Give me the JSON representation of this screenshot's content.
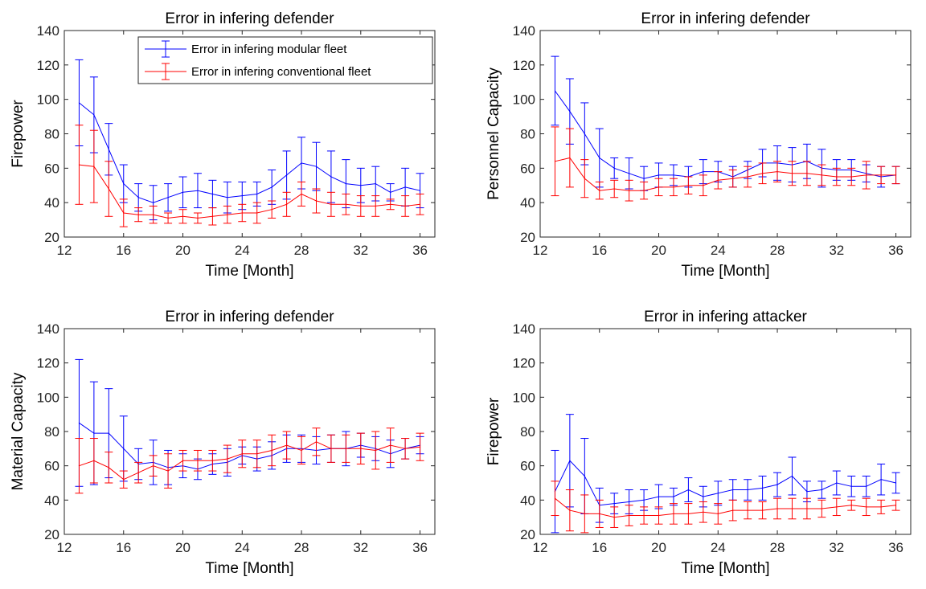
{
  "chart_data": [
    {
      "type": "line",
      "title": "Error in infering defender",
      "xlabel": "Time [Month]",
      "ylabel": "Firepower",
      "xlim": [
        12,
        37
      ],
      "ylim": [
        20,
        140
      ],
      "xticks": [
        12,
        16,
        20,
        24,
        28,
        32,
        36
      ],
      "yticks": [
        20,
        40,
        60,
        80,
        100,
        120,
        140
      ],
      "legend": "top-right",
      "x": [
        13,
        14,
        15,
        16,
        17,
        18,
        19,
        20,
        21,
        22,
        23,
        24,
        25,
        26,
        27,
        28,
        29,
        30,
        31,
        32,
        33,
        34,
        35,
        36
      ],
      "series": [
        {
          "name": "Error in infering modular fleet",
          "color": "#0000ff",
          "values": [
            98,
            91,
            71,
            51,
            43,
            40,
            43,
            46,
            47,
            45,
            43,
            44,
            45,
            49,
            56,
            63,
            61,
            55,
            51,
            50,
            51,
            46,
            49,
            47
          ],
          "err": [
            25,
            22,
            15,
            11,
            8,
            10,
            8,
            9,
            10,
            8,
            9,
            8,
            7,
            10,
            14,
            15,
            14,
            15,
            14,
            10,
            10,
            5,
            11,
            10
          ]
        },
        {
          "name": "Error in infering conventional fleet",
          "color": "#ff0000",
          "values": [
            62,
            61,
            48,
            34,
            33,
            33,
            31,
            32,
            31,
            32,
            33,
            34,
            34,
            36,
            39,
            45,
            41,
            39,
            39,
            38,
            38,
            39,
            38,
            39
          ],
          "err": [
            23,
            21,
            16,
            8,
            4,
            5,
            3,
            4,
            3,
            5,
            5,
            5,
            6,
            5,
            7,
            7,
            7,
            7,
            6,
            6,
            6,
            3,
            6,
            6
          ]
        }
      ]
    },
    {
      "type": "line",
      "title": "Error in infering defender",
      "xlabel": "Time [Month]",
      "ylabel": "Personnel Capacity",
      "xlim": [
        12,
        37
      ],
      "ylim": [
        20,
        140
      ],
      "xticks": [
        12,
        16,
        20,
        24,
        28,
        32,
        36
      ],
      "yticks": [
        20,
        40,
        60,
        80,
        100,
        120,
        140
      ],
      "x": [
        13,
        14,
        15,
        16,
        17,
        18,
        19,
        20,
        21,
        22,
        23,
        24,
        25,
        26,
        27,
        28,
        29,
        30,
        31,
        32,
        33,
        34,
        35,
        36
      ],
      "series": [
        {
          "color": "#0000ff",
          "values": [
            105,
            93,
            80,
            66,
            60,
            57,
            54,
            56,
            56,
            55,
            58,
            58,
            55,
            59,
            63,
            63,
            62,
            64,
            60,
            59,
            59,
            57,
            55,
            56
          ],
          "err": [
            20,
            19,
            18,
            17,
            6,
            9,
            7,
            7,
            6,
            6,
            7,
            6,
            6,
            5,
            8,
            10,
            10,
            10,
            11,
            6,
            6,
            5,
            6,
            5
          ]
        },
        {
          "color": "#ff0000",
          "values": [
            64,
            66,
            54,
            47,
            48,
            47,
            47,
            49,
            49,
            50,
            50,
            53,
            54,
            55,
            57,
            58,
            57,
            57,
            56,
            55,
            55,
            56,
            56,
            56
          ],
          "err": [
            20,
            17,
            11,
            5,
            5,
            6,
            5,
            5,
            5,
            5,
            6,
            5,
            5,
            6,
            6,
            6,
            7,
            7,
            6,
            5,
            5,
            8,
            5,
            5
          ]
        }
      ]
    },
    {
      "type": "line",
      "title": "Error in infering defender",
      "xlabel": "Time [Month]",
      "ylabel": "Material Capacity",
      "xlim": [
        12,
        37
      ],
      "ylim": [
        20,
        140
      ],
      "xticks": [
        12,
        16,
        20,
        24,
        28,
        32,
        36
      ],
      "yticks": [
        20,
        40,
        60,
        80,
        100,
        120,
        140
      ],
      "x": [
        13,
        14,
        15,
        16,
        17,
        18,
        19,
        20,
        21,
        22,
        23,
        24,
        25,
        26,
        27,
        28,
        29,
        30,
        31,
        32,
        33,
        34,
        35,
        36
      ],
      "series": [
        {
          "color": "#0000ff",
          "values": [
            85,
            79,
            79,
            70,
            61,
            62,
            59,
            60,
            58,
            61,
            62,
            66,
            64,
            66,
            70,
            70,
            69,
            70,
            70,
            72,
            70,
            67,
            70,
            72
          ],
          "err": [
            37,
            30,
            26,
            19,
            9,
            13,
            10,
            7,
            6,
            6,
            8,
            5,
            7,
            8,
            8,
            8,
            8,
            8,
            10,
            7,
            7,
            8,
            6,
            5
          ]
        },
        {
          "color": "#ff0000",
          "values": [
            60,
            63,
            59,
            52,
            56,
            60,
            57,
            63,
            63,
            63,
            64,
            67,
            67,
            69,
            72,
            69,
            74,
            70,
            70,
            70,
            69,
            72,
            70,
            71
          ],
          "err": [
            16,
            13,
            9,
            5,
            6,
            6,
            10,
            6,
            6,
            6,
            8,
            8,
            8,
            9,
            8,
            8,
            8,
            8,
            8,
            9,
            11,
            10,
            6,
            8
          ]
        }
      ]
    },
    {
      "type": "line",
      "title": "Error in infering attacker",
      "xlabel": "Time [Month]",
      "ylabel": "Firepower",
      "xlim": [
        12,
        37
      ],
      "ylim": [
        20,
        140
      ],
      "xticks": [
        12,
        16,
        20,
        24,
        28,
        32,
        36
      ],
      "yticks": [
        20,
        40,
        60,
        80,
        100,
        120,
        140
      ],
      "x": [
        13,
        14,
        15,
        16,
        17,
        18,
        19,
        20,
        21,
        22,
        23,
        24,
        25,
        26,
        27,
        28,
        29,
        30,
        31,
        32,
        33,
        34,
        35,
        36
      ],
      "series": [
        {
          "color": "#0000ff",
          "values": [
            45,
            63,
            54,
            37,
            38,
            39,
            40,
            42,
            42,
            46,
            42,
            44,
            46,
            46,
            47,
            49,
            54,
            45,
            46,
            50,
            48,
            48,
            52,
            50
          ],
          "err": [
            24,
            27,
            22,
            10,
            6,
            7,
            6,
            7,
            5,
            7,
            6,
            7,
            6,
            6,
            7,
            7,
            11,
            6,
            5,
            7,
            6,
            6,
            9,
            6
          ]
        },
        {
          "color": "#ff0000",
          "values": [
            41,
            34,
            32,
            32,
            30,
            31,
            31,
            31,
            32,
            32,
            33,
            32,
            34,
            34,
            34,
            35,
            35,
            35,
            35,
            36,
            37,
            36,
            36,
            37
          ],
          "err": [
            10,
            12,
            11,
            8,
            6,
            6,
            5,
            5,
            6,
            6,
            6,
            6,
            6,
            5,
            5,
            6,
            6,
            6,
            5,
            5,
            3,
            5,
            4,
            3
          ]
        }
      ]
    }
  ]
}
